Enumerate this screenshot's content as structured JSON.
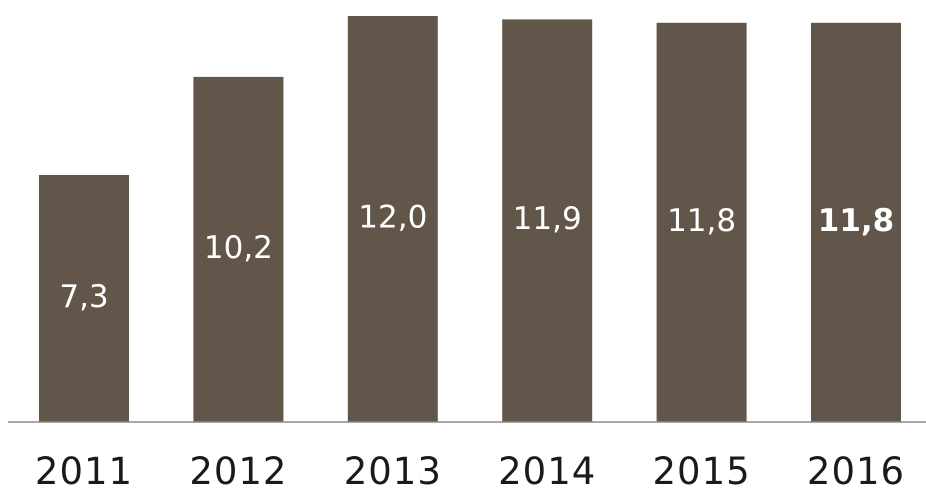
{
  "chart_data": {
    "type": "bar",
    "categories": [
      "2011",
      "2012",
      "2013",
      "2014",
      "2015",
      "2016"
    ],
    "values": [
      7.3,
      10.2,
      12.0,
      11.9,
      11.8,
      11.8
    ],
    "value_labels": [
      "7,3",
      "10,2",
      "12,0",
      "11,9",
      "11,8",
      "11,8"
    ],
    "bold_value_index": 5,
    "title": "",
    "xlabel": "",
    "ylabel": "",
    "ylim": [
      0,
      12.0
    ],
    "grid": false,
    "legend": "none",
    "bar_color": "#62554a",
    "value_label_color": "#ffffff",
    "axis_color": "#8a8a8a"
  }
}
